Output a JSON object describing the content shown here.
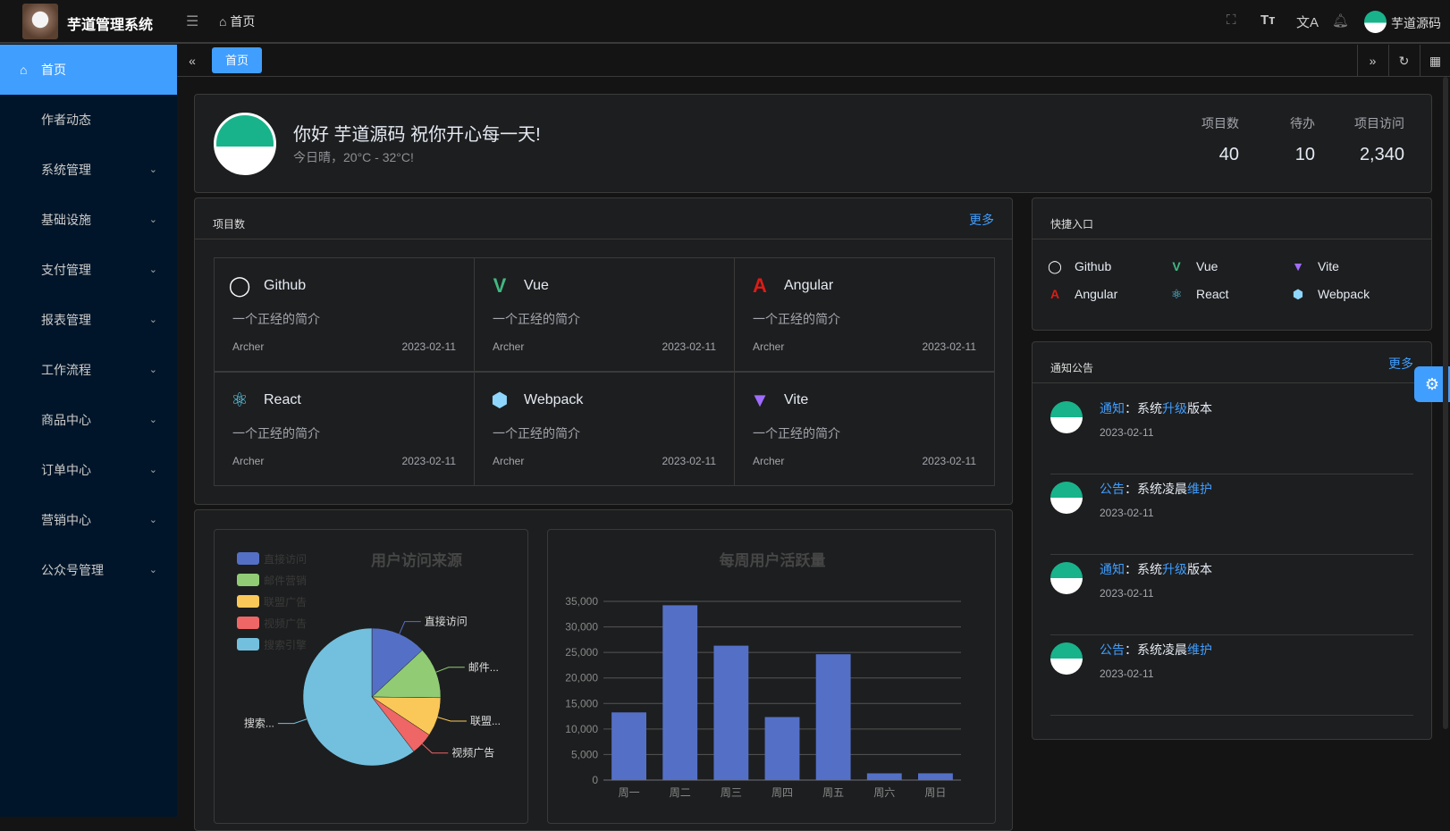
{
  "header": {
    "app_title": "芋道管理系统",
    "breadcrumb": "首页",
    "username": "芋道源码",
    "icons": [
      "fullscreen-icon",
      "font-size-icon",
      "translate-icon",
      "bell-icon"
    ]
  },
  "sidebar": {
    "items": [
      {
        "label": "首页",
        "active": true
      },
      {
        "label": "作者动态"
      },
      {
        "label": "系统管理",
        "expandable": true
      },
      {
        "label": "基础设施",
        "expandable": true
      },
      {
        "label": "支付管理",
        "expandable": true
      },
      {
        "label": "报表管理",
        "expandable": true
      },
      {
        "label": "工作流程",
        "expandable": true
      },
      {
        "label": "商品中心",
        "expandable": true
      },
      {
        "label": "订单中心",
        "expandable": true
      },
      {
        "label": "营销中心",
        "expandable": true
      },
      {
        "label": "公众号管理",
        "expandable": true
      }
    ]
  },
  "tabs": [
    {
      "label": "首页",
      "active": true
    }
  ],
  "welcome": {
    "greeting": "你好 芋道源码 祝你开心每一天!",
    "weather": "今日晴，20°C - 32°C!",
    "stats": [
      {
        "label": "项目数",
        "value": "40"
      },
      {
        "label": "待办",
        "value": "10"
      },
      {
        "label": "项目访问",
        "value": "2,340"
      }
    ]
  },
  "projects": {
    "title": "项目数",
    "more": "更多",
    "items": [
      {
        "name": "Github",
        "icon": "github-icon",
        "desc": "一个正经的简介",
        "author": "Archer",
        "date": "2023-02-11"
      },
      {
        "name": "Vue",
        "icon": "vue-icon",
        "desc": "一个正经的简介",
        "author": "Archer",
        "date": "2023-02-11"
      },
      {
        "name": "Angular",
        "icon": "angular-icon",
        "desc": "一个正经的简介",
        "author": "Archer",
        "date": "2023-02-11"
      },
      {
        "name": "React",
        "icon": "react-icon",
        "desc": "一个正经的简介",
        "author": "Archer",
        "date": "2023-02-11"
      },
      {
        "name": "Webpack",
        "icon": "webpack-icon",
        "desc": "一个正经的简介",
        "author": "Archer",
        "date": "2023-02-11"
      },
      {
        "name": "Vite",
        "icon": "vite-icon",
        "desc": "一个正经的简介",
        "author": "Archer",
        "date": "2023-02-11"
      }
    ]
  },
  "quick": {
    "title": "快捷入口",
    "items": [
      {
        "name": "Github"
      },
      {
        "name": "Vue"
      },
      {
        "name": "Vite"
      },
      {
        "name": "Angular"
      },
      {
        "name": "React"
      },
      {
        "name": "Webpack"
      }
    ]
  },
  "notices": {
    "title": "通知公告",
    "more": "更多",
    "items": [
      {
        "type": "通知",
        "sep": "：",
        "pre": "系统",
        "hl": "升级",
        "post": "版本",
        "date": "2023-02-11"
      },
      {
        "type": "公告",
        "sep": "：",
        "pre": "系统凌晨",
        "hl": "维护",
        "post": "",
        "date": "2023-02-11"
      },
      {
        "type": "通知",
        "sep": "：",
        "pre": "系统",
        "hl": "升级",
        "post": "版本",
        "date": "2023-02-11"
      },
      {
        "type": "公告",
        "sep": "：",
        "pre": "系统凌晨",
        "hl": "维护",
        "post": "",
        "date": "2023-02-11"
      }
    ]
  },
  "chart_data": [
    {
      "type": "pie",
      "title": "用户访问来源",
      "legend_position": "top-left",
      "categories": [
        "直接访问",
        "邮件营销",
        "联盟广告",
        "视频广告",
        "搜索引擎"
      ],
      "values": [
        335,
        310,
        234,
        135,
        1548
      ],
      "slice_labels": [
        "直接访问",
        "邮件...",
        "联盟...",
        "视频广告",
        "搜索..."
      ],
      "colors": [
        "#5470c6",
        "#91cc75",
        "#fac858",
        "#ee6666",
        "#73c0de"
      ]
    },
    {
      "type": "bar",
      "title": "每周用户活跃量",
      "categories": [
        "周一",
        "周二",
        "周三",
        "周四",
        "周五",
        "周六",
        "周日"
      ],
      "values": [
        13253,
        34235,
        26321,
        12340,
        24643,
        1322,
        1324
      ],
      "ylim": [
        0,
        35000
      ],
      "yticks": [
        "0",
        "5,000",
        "10,000",
        "15,000",
        "20,000",
        "25,000",
        "30,000",
        "35,000"
      ],
      "grid": true,
      "color": "#5470c6"
    }
  ]
}
